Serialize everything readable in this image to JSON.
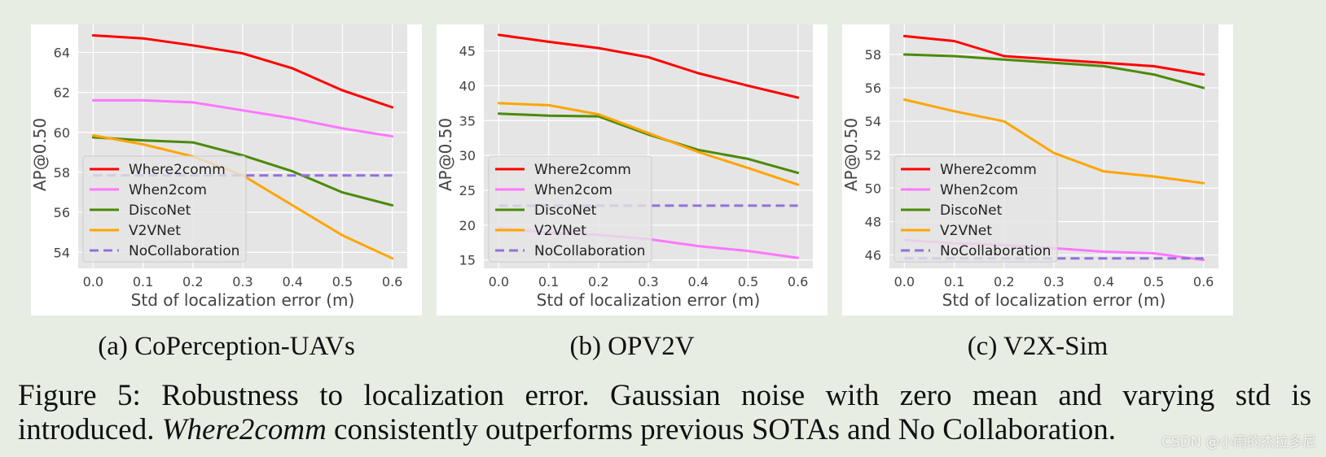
{
  "figure_caption": {
    "label": "Figure 5:",
    "line1_rest": "Robustness to localization error.  Gaussian noise with zero mean and varying std is",
    "line2_prefix": "introduced. ",
    "line2_em": "Where2comm",
    "line2_rest": " consistently outperforms previous SOTAs and No Collaboration."
  },
  "watermark": "CSDN @小雨的杰拉多尼",
  "colors": {
    "Where2comm": "#ff0000",
    "When2com": "#ff77ff",
    "DiscoNet": "#4b8a08",
    "V2VNet": "#ffa500",
    "NoCollaboration": "#9370db",
    "plot_bg": "#e5e5e5",
    "grid": "#ffffff"
  },
  "chart_data": [
    {
      "type": "line",
      "caption": "(a) CoPerception-UAVs",
      "xlabel": "Std of localization error (m)",
      "ylabel": "AP@0.50",
      "x": [
        0.0,
        0.1,
        0.2,
        0.3,
        0.4,
        0.5,
        0.6
      ],
      "x_tick_labels": [
        "0.0",
        "0.1",
        "0.2",
        "0.3",
        "0.4",
        "0.5",
        "0.6"
      ],
      "xlim": [
        -0.03,
        0.63
      ],
      "ylim": [
        53.2,
        65.4
      ],
      "yticks": [
        54,
        56,
        58,
        60,
        62,
        64
      ],
      "y_tick_labels": [
        "54",
        "56",
        "58",
        "60",
        "62",
        "64"
      ],
      "grid": true,
      "legend_position": "lower-left",
      "series": [
        {
          "name": "Where2comm",
          "values": [
            64.85,
            64.7,
            64.35,
            63.95,
            63.2,
            62.1,
            61.25
          ]
        },
        {
          "name": "When2com",
          "values": [
            61.6,
            61.6,
            61.5,
            61.1,
            60.7,
            60.2,
            59.8
          ]
        },
        {
          "name": "DiscoNet",
          "values": [
            59.75,
            59.6,
            59.5,
            58.85,
            58.05,
            57.0,
            56.35
          ]
        },
        {
          "name": "V2VNet",
          "values": [
            59.85,
            59.4,
            58.8,
            57.85,
            56.35,
            54.85,
            53.7
          ]
        },
        {
          "name": "NoCollaboration",
          "values": [
            57.85,
            57.85,
            57.85,
            57.85,
            57.85,
            57.85,
            57.85
          ],
          "dashed": true
        }
      ]
    },
    {
      "type": "line",
      "caption": "(b) OPV2V",
      "xlabel": "Std of localization error (m)",
      "ylabel": "AP@0.50",
      "x": [
        0.0,
        0.1,
        0.2,
        0.3,
        0.4,
        0.5,
        0.6
      ],
      "x_tick_labels": [
        "0.0",
        "0.1",
        "0.2",
        "0.3",
        "0.4",
        "0.5",
        "0.6"
      ],
      "xlim": [
        -0.03,
        0.63
      ],
      "ylim": [
        13.8,
        48.8
      ],
      "yticks": [
        15,
        20,
        25,
        30,
        35,
        40,
        45
      ],
      "y_tick_labels": [
        "15",
        "20",
        "25",
        "30",
        "35",
        "40",
        "45"
      ],
      "grid": true,
      "legend_position": "lower-left",
      "series": [
        {
          "name": "Where2comm",
          "values": [
            47.3,
            46.3,
            45.4,
            44.1,
            41.8,
            40.0,
            38.3
          ]
        },
        {
          "name": "When2com",
          "values": [
            19.6,
            18.9,
            18.6,
            18.0,
            17.0,
            16.3,
            15.3
          ]
        },
        {
          "name": "DiscoNet",
          "values": [
            36.0,
            35.7,
            35.6,
            33.0,
            30.8,
            29.5,
            27.5
          ]
        },
        {
          "name": "V2VNet",
          "values": [
            37.5,
            37.2,
            35.9,
            33.2,
            30.5,
            28.2,
            25.8
          ]
        },
        {
          "name": "NoCollaboration",
          "values": [
            22.8,
            22.8,
            22.8,
            22.8,
            22.8,
            22.8,
            22.8
          ],
          "dashed": true
        }
      ]
    },
    {
      "type": "line",
      "caption": "(c) V2X-Sim",
      "xlabel": "Std of localization error (m)",
      "ylabel": "AP@0.50",
      "x": [
        0.0,
        0.1,
        0.2,
        0.3,
        0.4,
        0.5,
        0.6
      ],
      "x_tick_labels": [
        "0.0",
        "0.1",
        "0.2",
        "0.3",
        "0.4",
        "0.5",
        "0.6"
      ],
      "xlim": [
        -0.03,
        0.63
      ],
      "ylim": [
        45.2,
        59.8
      ],
      "yticks": [
        46,
        48,
        50,
        52,
        54,
        56,
        58
      ],
      "y_tick_labels": [
        "46",
        "48",
        "50",
        "52",
        "54",
        "56",
        "58"
      ],
      "grid": true,
      "legend_position": "lower-left",
      "series": [
        {
          "name": "Where2comm",
          "values": [
            59.1,
            58.8,
            57.9,
            57.7,
            57.5,
            57.3,
            56.8
          ]
        },
        {
          "name": "When2com",
          "values": [
            46.9,
            46.7,
            46.6,
            46.4,
            46.2,
            46.1,
            45.7
          ]
        },
        {
          "name": "DiscoNet",
          "values": [
            58.0,
            57.9,
            57.7,
            57.5,
            57.3,
            56.8,
            56.0
          ]
        },
        {
          "name": "V2VNet",
          "values": [
            55.3,
            54.6,
            54.0,
            52.1,
            51.0,
            50.7,
            50.3
          ]
        },
        {
          "name": "NoCollaboration",
          "values": [
            45.8,
            45.8,
            45.8,
            45.8,
            45.8,
            45.8,
            45.8
          ],
          "dashed": true
        }
      ]
    }
  ]
}
